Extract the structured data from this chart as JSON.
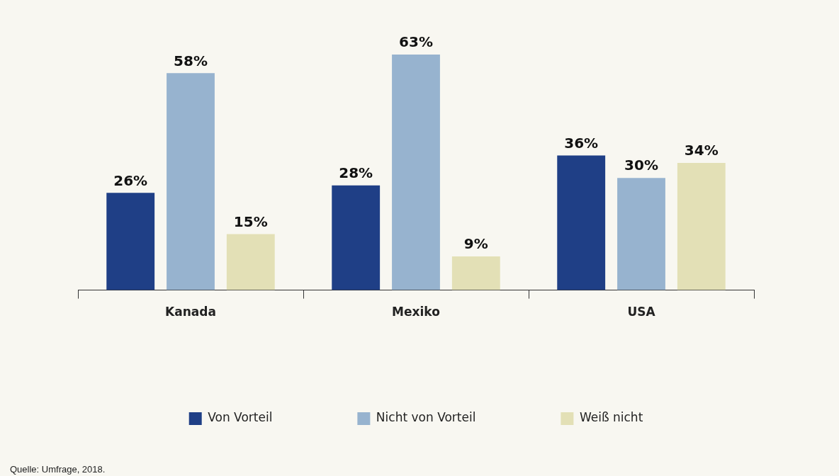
{
  "chart_data": {
    "type": "bar",
    "categories": [
      "Kanada",
      "Mexiko",
      "USA"
    ],
    "series": [
      {
        "name": "Von Vorteil",
        "color": "#1f3f86",
        "values": [
          26,
          28,
          36
        ],
        "value_labels": [
          "26%",
          "28%",
          "36%"
        ]
      },
      {
        "name": "Nicht von Vorteil",
        "color": "#97b3cf",
        "values": [
          58,
          63,
          30
        ],
        "value_labels": [
          "58%",
          "63%",
          "30%"
        ]
      },
      {
        "name": "Weiß nicht",
        "color": "#e3e0b6",
        "values": [
          15,
          9,
          34
        ],
        "value_labels": [
          "15%",
          "9%",
          "34%"
        ]
      }
    ],
    "legend": "bottom",
    "grid": false,
    "annotations": [
      "Quelle: Umfrage, 2018."
    ]
  }
}
